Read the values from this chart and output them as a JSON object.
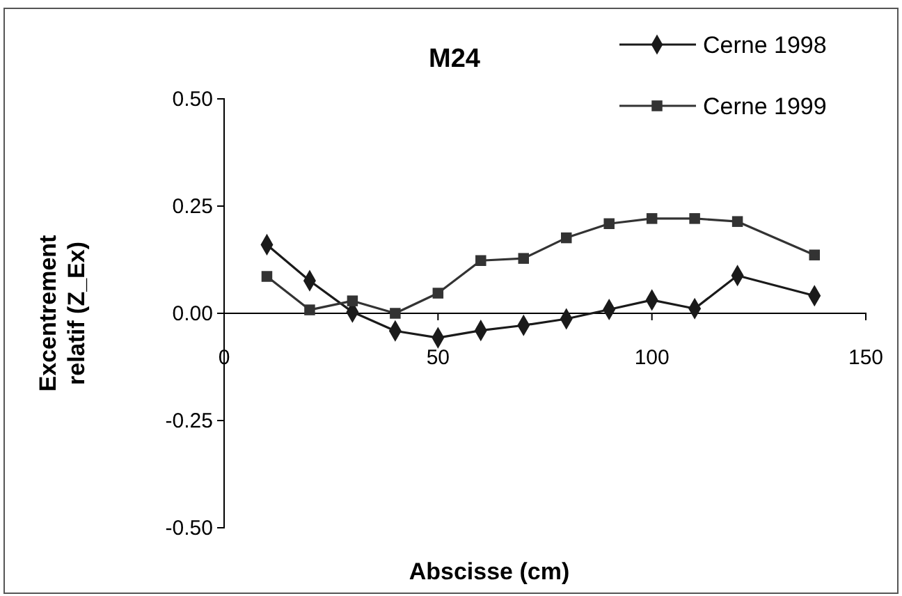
{
  "chart_data": {
    "type": "line",
    "title": "M24",
    "xlabel": "Abscisse (cm)",
    "ylabel": "Excentrement relatif (Z_Ex)",
    "x": [
      10,
      20,
      30,
      40,
      50,
      60,
      70,
      80,
      90,
      100,
      110,
      120,
      138
    ],
    "series": [
      {
        "name": "Cerne 1998",
        "color": "#1a1a1a",
        "marker": "diamond",
        "values": [
          0.16,
          0.076,
          0.003,
          -0.041,
          -0.057,
          -0.04,
          -0.028,
          -0.013,
          0.009,
          0.031,
          0.011,
          0.088,
          0.041
        ]
      },
      {
        "name": "Cerne 1999",
        "color": "#333333",
        "marker": "square",
        "values": [
          0.086,
          0.008,
          0.029,
          0.0,
          0.047,
          0.123,
          0.128,
          0.176,
          0.209,
          0.221,
          0.221,
          0.214,
          0.136
        ]
      }
    ],
    "xlim": [
      0,
      150
    ],
    "xticks": [
      0,
      50,
      100,
      150
    ],
    "ylim": [
      -0.5,
      0.5
    ],
    "yticks": [
      {
        "value": -0.5,
        "label": "-0.50"
      },
      {
        "value": -0.25,
        "label": "-0.25"
      },
      {
        "value": 0,
        "label": "0.00"
      },
      {
        "value": 0.25,
        "label": "0.25"
      },
      {
        "value": 0.5,
        "label": "0.50"
      }
    ],
    "grid": false,
    "legend": "top right",
    "line_style": "solid"
  }
}
